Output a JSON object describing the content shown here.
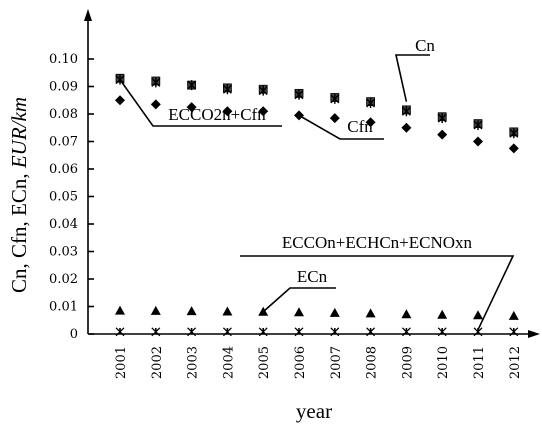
{
  "chart_data": {
    "type": "scatter",
    "title": "",
    "x": [
      "2001",
      "2002",
      "2003",
      "2004",
      "2005",
      "2006",
      "2007",
      "2008",
      "2009",
      "2010",
      "2011",
      "2012"
    ],
    "xlabel": "year",
    "ylabel_plain": "Cn, Cfn, ECn, ",
    "ylabel_italic": "EUR/km",
    "ylim": [
      0,
      0.1
    ],
    "yticks": [
      "0",
      "0.01",
      "0.02",
      "0.03",
      "0.04",
      "0.05",
      "0.06",
      "0.07",
      "0.08",
      "0.09",
      "0.10"
    ],
    "grid": false,
    "series": [
      {
        "name": "Cn",
        "marker": "square-x",
        "values": [
          0.093,
          0.092,
          0.0905,
          0.0895,
          0.089,
          0.0875,
          0.086,
          0.0845,
          0.0815,
          0.079,
          0.0765,
          0.0735
        ]
      },
      {
        "name": "ECCO2n+Cfn",
        "marker": "star",
        "values": [
          0.0925,
          0.0915,
          0.0905,
          0.089,
          0.0885,
          0.087,
          0.0855,
          0.084,
          0.081,
          0.0785,
          0.076,
          0.073
        ]
      },
      {
        "name": "Cfn",
        "marker": "diamond",
        "values": [
          0.085,
          0.0835,
          0.0825,
          0.081,
          0.081,
          0.0795,
          0.0785,
          0.077,
          0.075,
          0.0725,
          0.07,
          0.0675
        ]
      },
      {
        "name": "ECn",
        "marker": "triangle",
        "values": [
          0.0085,
          0.0084,
          0.0083,
          0.0082,
          0.0081,
          0.0079,
          0.0077,
          0.0075,
          0.0072,
          0.007,
          0.0068,
          0.0066
        ]
      },
      {
        "name": "ECCOn+ECHCn+ECNOxn",
        "marker": "x",
        "values": [
          0.0008,
          0.0008,
          0.0008,
          0.0008,
          0.0008,
          0.0008,
          0.0008,
          0.0008,
          0.0008,
          0.0008,
          0.0008,
          0.0008
        ]
      }
    ],
    "annotations": [
      {
        "text": "Cn",
        "series": "Cn",
        "point": 7
      },
      {
        "text": "ECCO2n+Cfn",
        "series": "ECCO2n+Cfn",
        "point": 0
      },
      {
        "text": "Cfn",
        "series": "Cfn",
        "point": 5
      },
      {
        "text": "ECn",
        "series": "ECn",
        "point": 4
      },
      {
        "text": "ECCOn+ECHCn+ECNOxn",
        "series": "ECCOn+ECHCn+ECNOxn",
        "point": 10
      }
    ]
  }
}
